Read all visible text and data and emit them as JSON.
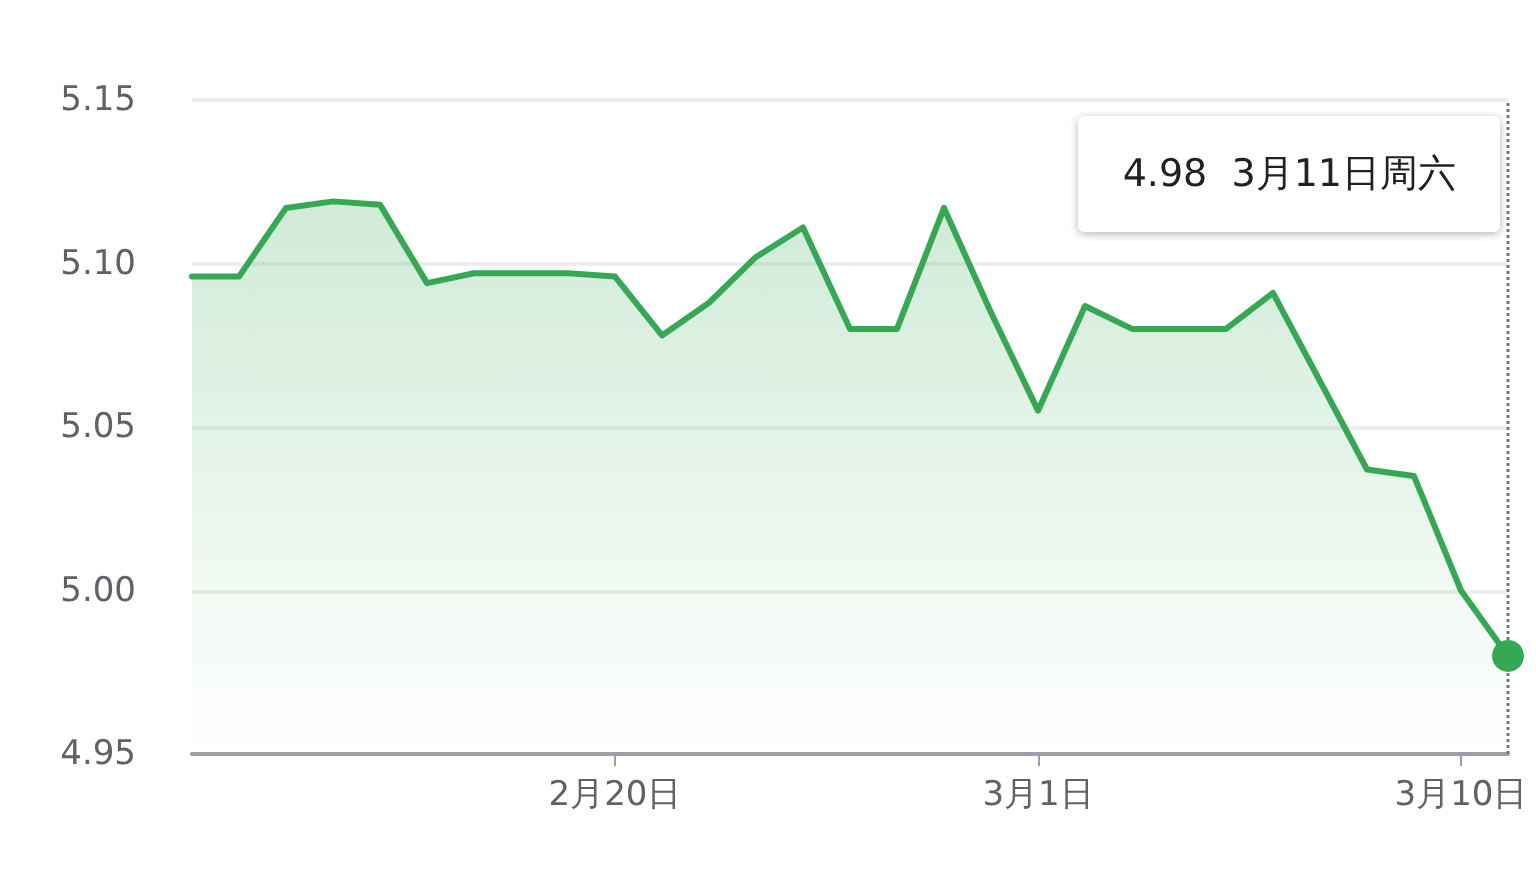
{
  "chart_data": {
    "type": "area",
    "x": [
      "--02-11",
      "--02-12",
      "--02-13",
      "--02-14",
      "--02-15",
      "--02-16",
      "--02-17",
      "--02-18",
      "--02-19",
      "--02-20",
      "--02-21",
      "--02-22",
      "--02-23",
      "--02-24",
      "--02-25",
      "--02-26",
      "--02-27",
      "--02-28",
      "--03-01",
      "--03-02",
      "--03-03",
      "--03-04",
      "--03-05",
      "--03-06",
      "--03-07",
      "--03-08",
      "--03-09",
      "--03-10",
      "--03-11"
    ],
    "series": [
      {
        "color": "#34a853",
        "values": [
          5.096,
          5.096,
          5.117,
          5.119,
          5.118,
          5.094,
          5.097,
          5.097,
          5.097,
          5.096,
          5.078,
          5.088,
          5.102,
          5.111,
          5.08,
          5.08,
          5.117,
          5.085,
          5.055,
          5.087,
          5.08,
          5.08,
          5.08,
          5.091,
          5.064,
          5.037,
          5.035,
          5.0,
          4.98
        ]
      }
    ],
    "xlim": [
      "--02-11",
      "--03-11"
    ],
    "xticks": [
      {
        "value": "--02-20",
        "label": "2月20日"
      },
      {
        "value": "--03-01",
        "label": "3月1日"
      },
      {
        "value": "--03-10",
        "label": "3月10日"
      }
    ],
    "ylim": [
      4.95,
      5.15
    ],
    "yticks": [
      {
        "value": 4.95,
        "label": "4.95"
      },
      {
        "value": 5.0,
        "label": "5.00"
      },
      {
        "value": 5.05,
        "label": "5.05"
      },
      {
        "value": 5.1,
        "label": "5.10"
      },
      {
        "value": 5.15,
        "label": "5.15"
      }
    ],
    "ref_lines": [
      {
        "axis": "x",
        "value": "--03-11",
        "color": "#777777",
        "line_style": "dotted"
      }
    ],
    "annotations": [
      "4.98  3月11日周六"
    ],
    "grid": "y",
    "marker": "none",
    "line_style": "solid"
  }
}
